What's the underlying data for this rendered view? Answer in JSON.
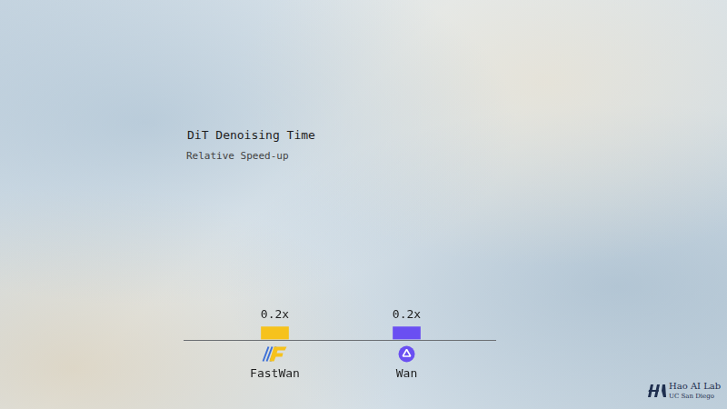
{
  "chart_data": {
    "type": "bar",
    "title": "DiT Denoising Time",
    "subtitle": "Relative Speed-up",
    "categories": [
      "FastWan",
      "Wan"
    ],
    "values": [
      0.2,
      0.2
    ],
    "value_labels": [
      "0.2x",
      "0.2x"
    ],
    "colors": [
      "#f6c21c",
      "#6a4ff2"
    ],
    "ylim": [
      0,
      1
    ],
    "data_labels": true,
    "tick_labels": "x",
    "grid": false
  },
  "logo": {
    "name": "Hao AI Lab",
    "affiliation": "UC San Diego"
  }
}
